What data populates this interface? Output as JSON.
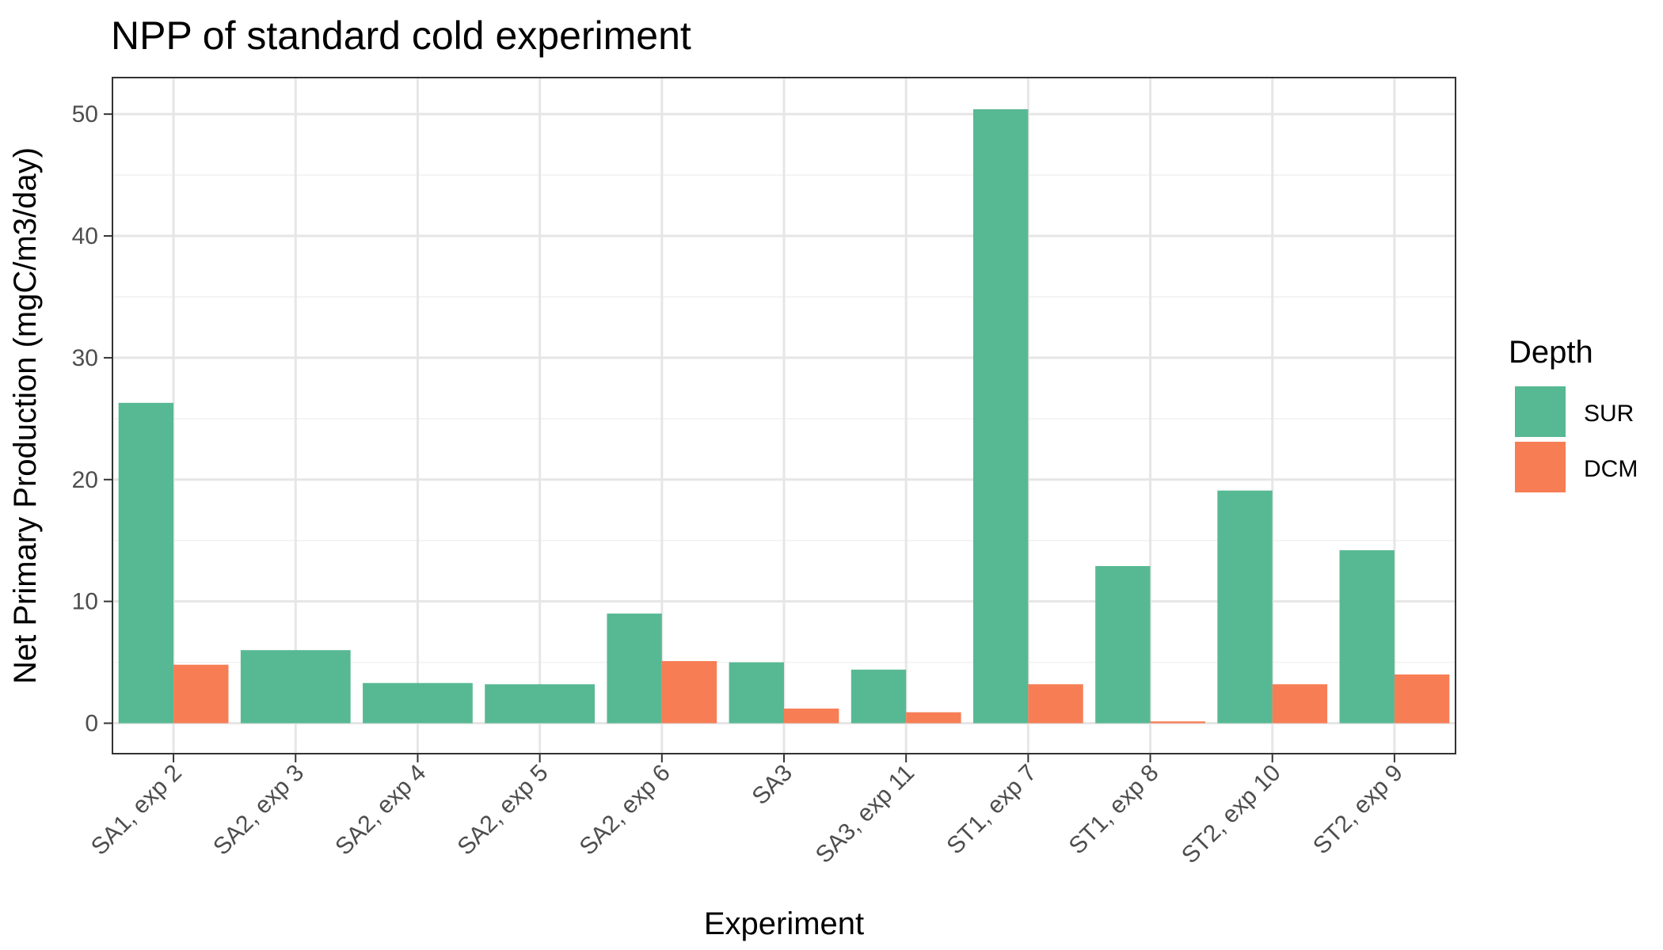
{
  "chart_data": {
    "type": "bar",
    "title": "NPP of standard cold experiment",
    "xlabel": "Experiment",
    "ylabel": "Net Primary Production (mgC/m3/day)",
    "ylim": [
      -2.5,
      53
    ],
    "yticks": [
      0,
      10,
      20,
      30,
      40,
      50
    ],
    "grid": true,
    "legend": {
      "title": "Depth",
      "position": "right"
    },
    "categories": [
      "SA1, exp 2",
      "SA2, exp 3",
      "SA2, exp 4",
      "SA2, exp 5",
      "SA2, exp 6",
      "SA3",
      "SA3, exp 11",
      "ST1, exp 7",
      "ST1, exp 8",
      "ST2, exp 10",
      "ST2, exp 9"
    ],
    "series": [
      {
        "name": "SUR",
        "color": "#57b993",
        "values": [
          26.3,
          6.0,
          3.3,
          3.2,
          9.0,
          5.0,
          4.4,
          50.4,
          12.9,
          19.1,
          14.2
        ]
      },
      {
        "name": "DCM",
        "color": "#f77d55",
        "values": [
          4.8,
          null,
          null,
          null,
          5.1,
          1.2,
          0.9,
          3.2,
          0.15,
          3.2,
          4.0
        ]
      }
    ]
  }
}
